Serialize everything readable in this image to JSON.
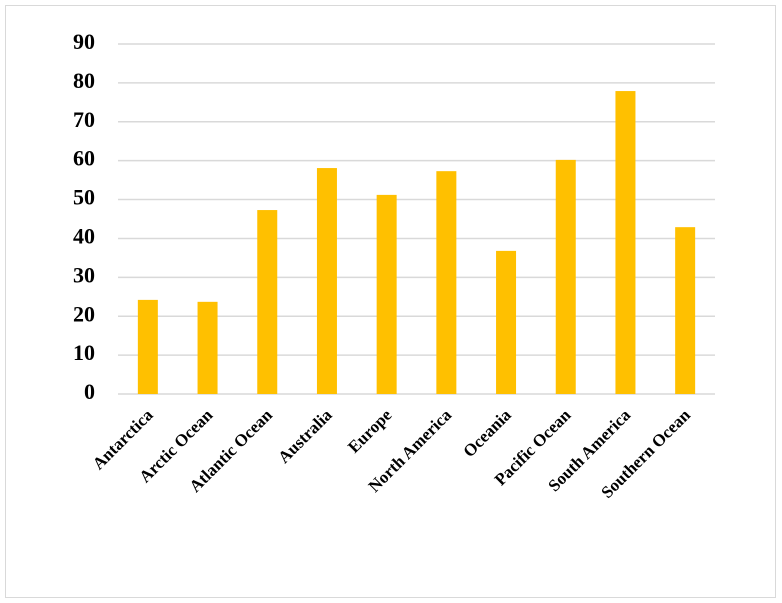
{
  "chart_data": {
    "type": "bar",
    "categories": [
      "Antarctica",
      "Arctic Ocean",
      "Atlantic Ocean",
      "Australia",
      "Europe",
      "North America",
      "Oceania",
      "Pacific Ocean",
      "South America",
      "Southern Ocean"
    ],
    "values": [
      24.2,
      23.7,
      47.3,
      58.1,
      51.2,
      57.3,
      36.8,
      60.2,
      77.9,
      42.9
    ],
    "color": "#ffc000",
    "ylim": [
      0,
      90
    ],
    "yticks": [
      0,
      10,
      20,
      30,
      40,
      50,
      60,
      70,
      80,
      90
    ],
    "grid": true
  }
}
